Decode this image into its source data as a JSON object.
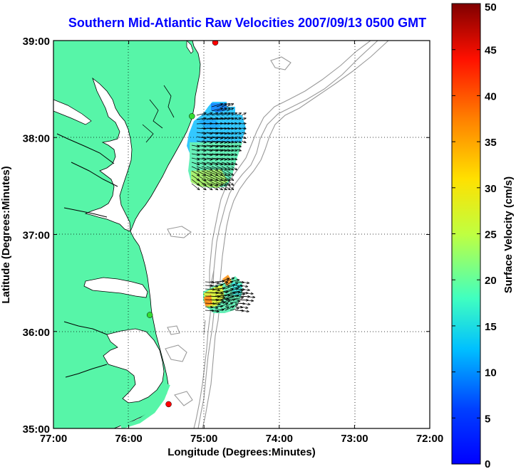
{
  "title": "Southern Mid-Atlantic Raw Velocities 2007/09/13 0500 GMT",
  "xlabel": "Longitude (Degrees:Minutes)",
  "ylabel": "Latitude (Degrees:Minutes)",
  "x_ticks": [
    "77:00",
    "76:00",
    "75:00",
    "74:00",
    "73:00",
    "72:00"
  ],
  "y_ticks": [
    "35:00",
    "36:00",
    "37:00",
    "38:00",
    "39:00"
  ],
  "colorbar": {
    "label": "Surface Velocity (cm/s)",
    "ticks": [
      "0",
      "5",
      "10",
      "15",
      "20",
      "25",
      "30",
      "35",
      "40",
      "45",
      "50"
    ],
    "range": [
      0,
      50
    ]
  },
  "colors": {
    "land": "#57f5a8",
    "coast": "#000000",
    "bathymetry": "#9a9a9a",
    "title": "#0000ff",
    "station_red": "#ff0000",
    "station_green": "#33dd33"
  },
  "stations": [
    {
      "lon": -74.85,
      "lat": 38.98,
      "color": "red"
    },
    {
      "lon": -75.16,
      "lat": 38.22,
      "color": "green"
    },
    {
      "lon": -75.72,
      "lat": 36.17,
      "color": "green"
    },
    {
      "lon": -75.47,
      "lat": 35.25,
      "color": "red"
    }
  ]
}
